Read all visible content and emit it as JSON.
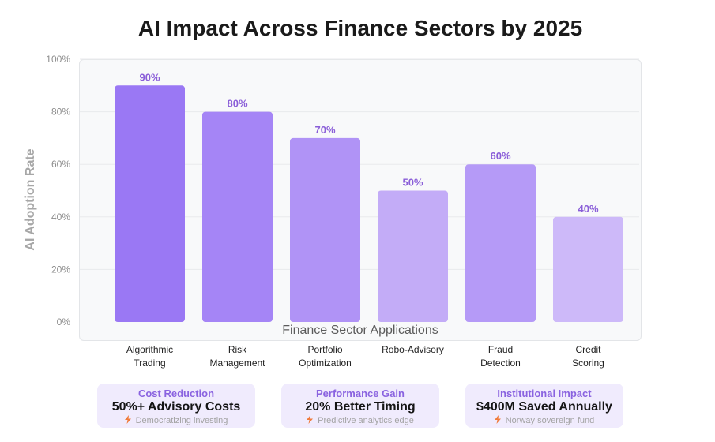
{
  "chart_data": {
    "type": "bar",
    "title": "AI Impact Across Finance Sectors by 2025",
    "xlabel": "Finance Sector Applications",
    "ylabel": "AI Adoption Rate",
    "categories": [
      [
        "Algorithmic",
        "Trading"
      ],
      [
        "Risk",
        "Management"
      ],
      [
        "Portfolio",
        "Optimization"
      ],
      [
        "Robo-Advisory"
      ],
      [
        "Fraud",
        "Detection"
      ],
      [
        "Credit",
        "Scoring"
      ]
    ],
    "values": [
      90,
      80,
      70,
      50,
      60,
      40
    ],
    "value_labels": [
      "90%",
      "80%",
      "70%",
      "50%",
      "60%",
      "40%"
    ],
    "yticks": [
      0,
      20,
      40,
      60,
      80,
      100
    ],
    "ytick_labels": [
      "0%",
      "20%",
      "40%",
      "60%",
      "80%",
      "100%"
    ],
    "ylim": [
      0,
      100
    ],
    "grid": true,
    "bar_colors": [
      "#9a78f4",
      "#a585f6",
      "#b093f6",
      "#c3acf7",
      "#b59af7",
      "#cdb9f9"
    ],
    "label_color": "#8a5ed8"
  },
  "cards": [
    {
      "label": "Cost Reduction",
      "value": "50%+ Advisory Costs",
      "icon": "lightning-icon",
      "note": "Democratizing investing"
    },
    {
      "label": "Performance Gain",
      "value": "20% Better Timing",
      "icon": "lightning-icon",
      "note": "Predictive analytics edge"
    },
    {
      "label": "Institutional Impact",
      "value": "$400M Saved Annually",
      "icon": "lightning-icon",
      "note": "Norway sovereign fund"
    }
  ]
}
